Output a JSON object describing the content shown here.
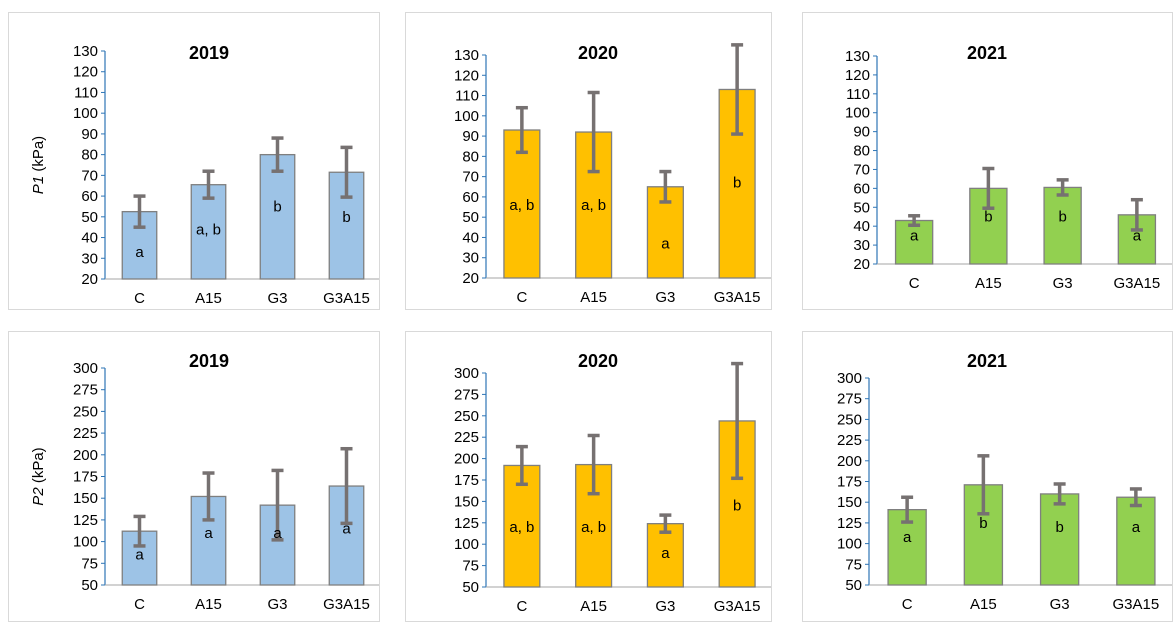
{
  "chart_data": [
    {
      "type": "bar",
      "title": "2019",
      "ylabel_italic": "P1",
      "ylabel_unit": " (kPa)",
      "categories": [
        "C",
        "A15",
        "G3",
        "G3A15"
      ],
      "values": [
        52.5,
        65.5,
        80,
        71.5
      ],
      "error": [
        7.5,
        6.5,
        8,
        12
      ],
      "letters": [
        "a",
        "a, b",
        "b",
        "b"
      ],
      "letter_y": [
        33,
        44,
        55,
        50
      ],
      "ylim": [
        20,
        130
      ],
      "yticks": [
        20,
        30,
        40,
        50,
        60,
        70,
        80,
        90,
        100,
        110,
        120,
        130
      ],
      "color": "#9dc3e6",
      "grid": false
    },
    {
      "type": "bar",
      "title": "2020",
      "ylabel_italic": "",
      "ylabel_unit": "",
      "categories": [
        "C",
        "A15",
        "G3",
        "G3A15"
      ],
      "values": [
        93,
        92,
        65,
        113
      ],
      "error": [
        11,
        19.5,
        7.5,
        22
      ],
      "letters": [
        "a, b",
        "a, b",
        "a",
        "b"
      ],
      "letter_y": [
        56,
        56,
        37,
        67
      ],
      "ylim": [
        20,
        130
      ],
      "yticks": [
        20,
        30,
        40,
        50,
        60,
        70,
        80,
        90,
        100,
        110,
        120,
        130
      ],
      "color": "#ffc000",
      "grid": false
    },
    {
      "type": "bar",
      "title": "2021",
      "ylabel_italic": "",
      "ylabel_unit": "",
      "categories": [
        "C",
        "A15",
        "G3",
        "G3A15"
      ],
      "values": [
        43,
        60,
        60.5,
        46
      ],
      "error": [
        2.5,
        10.5,
        4,
        8
      ],
      "letters": [
        "a",
        "b",
        "b",
        "a"
      ],
      "letter_y": [
        35,
        45,
        45,
        35
      ],
      "ylim": [
        20,
        130
      ],
      "yticks": [
        20,
        30,
        40,
        50,
        60,
        70,
        80,
        90,
        100,
        110,
        120,
        130
      ],
      "color": "#92d050",
      "grid": false
    },
    {
      "type": "bar",
      "title": "2019",
      "ylabel_italic": "P2",
      "ylabel_unit": " (kPa)",
      "categories": [
        "C",
        "A15",
        "G3",
        "G3A15"
      ],
      "values": [
        112,
        152,
        142,
        164
      ],
      "error": [
        17,
        27,
        40,
        43
      ],
      "letters": [
        "a",
        "a",
        "a",
        "a"
      ],
      "letter_y": [
        85,
        110,
        110,
        115
      ],
      "ylim": [
        50,
        300
      ],
      "yticks": [
        50,
        75,
        100,
        125,
        150,
        175,
        200,
        225,
        250,
        275,
        300
      ],
      "color": "#9dc3e6",
      "grid": false
    },
    {
      "type": "bar",
      "title": "2020",
      "ylabel_italic": "",
      "ylabel_unit": "",
      "categories": [
        "C",
        "A15",
        "G3",
        "G3A15"
      ],
      "values": [
        192,
        193,
        124,
        244
      ],
      "error": [
        22,
        34,
        10,
        67
      ],
      "letters": [
        "a, b",
        "a, b",
        "a",
        "b"
      ],
      "letter_y": [
        120,
        120,
        90,
        145
      ],
      "ylim": [
        50,
        300
      ],
      "yticks": [
        50,
        75,
        100,
        125,
        150,
        175,
        200,
        225,
        250,
        275,
        300
      ],
      "color": "#ffc000",
      "grid": false
    },
    {
      "type": "bar",
      "title": "2021",
      "ylabel_italic": "",
      "ylabel_unit": "",
      "categories": [
        "C",
        "A15",
        "G3",
        "G3A15"
      ],
      "values": [
        141,
        171,
        160,
        156
      ],
      "error": [
        15,
        35,
        12,
        10
      ],
      "letters": [
        "a",
        "b",
        "b",
        "a"
      ],
      "letter_y": [
        108,
        125,
        120,
        120
      ],
      "ylim": [
        50,
        300
      ],
      "yticks": [
        50,
        75,
        100,
        125,
        150,
        175,
        200,
        225,
        250,
        275,
        300
      ],
      "color": "#92d050",
      "grid": false
    }
  ]
}
